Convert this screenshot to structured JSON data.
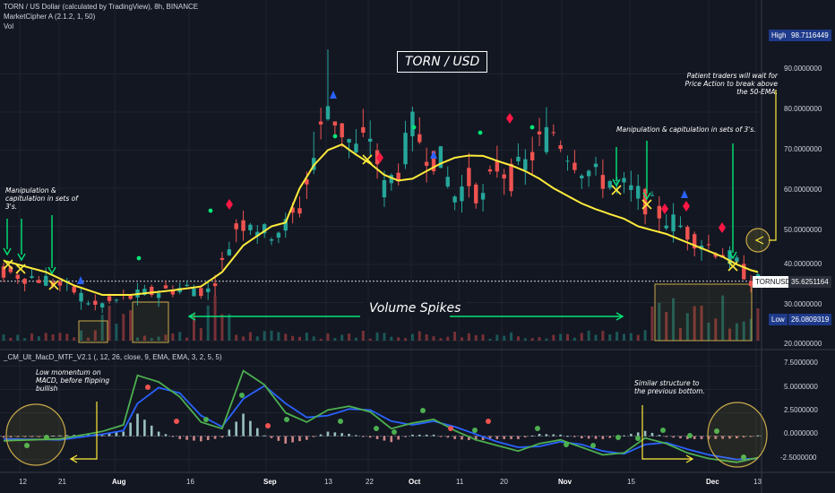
{
  "header": {
    "line1": "TORN / US Dollar (calculated by TradingView), 8h, BINANCE",
    "line2": "MarketCipher A (2.1.2, 1, 50)",
    "line3": "Vol",
    "macd_legend": "_CM_Ult_MacD_MTF_V2.1 (, 12, 26, close, 9, EMA, EMA, 3, 2, 5, 5)"
  },
  "price_axis": {
    "ticks": [
      "90.0000000",
      "80.0000000",
      "70.0000000",
      "60.0000000",
      "50.0000000",
      "40.0000000",
      "30.0000000",
      "20.0000000"
    ],
    "high_label": "High",
    "high_value": "98.7116449",
    "symbol_label": "TORNUSD",
    "last_value": "35.6251164",
    "low_label": "Low",
    "low_value": "26.0809319"
  },
  "macd_axis": {
    "ticks": [
      "7.5000000",
      "5.0000000",
      "2.5000000",
      "0.0000000",
      "-2.5000000"
    ]
  },
  "time_axis": {
    "ticks": [
      "12",
      "21",
      "Aug",
      "16",
      "Sep",
      "13",
      "22",
      "Oct",
      "11",
      "20",
      "Nov",
      "15",
      "Dec",
      "13"
    ]
  },
  "annotations": {
    "title": "TORN / USD",
    "volume_spikes": "Volume Spikes",
    "manip_left": "Manipulation & capitulation in sets of 3's.",
    "manip_right": "Manipulation & capitulation in sets of 3's.",
    "patient": "Patient traders will wait for Price Action to break above the 50-EMA.",
    "low_momentum": "Low momentum on MACD, before flipping bullish",
    "similar": "Similar structure to the previous bottom."
  },
  "colors": {
    "background": "#131722",
    "up": "#26a69a",
    "down": "#ef5350",
    "ema": "#ffeb3b",
    "macd": "#4caf50",
    "signal": "#2962ff",
    "annotation_green": "#00e676",
    "annotation_yellow": "#ffeb3b",
    "blue_marker": "#2962ff",
    "red_marker": "#ff1744"
  },
  "chart_data": {
    "type": "candlestick",
    "price_range": [
      20,
      100
    ],
    "macd_range": [
      -3.5,
      8.5
    ],
    "x_ticks": [
      "12",
      "21",
      "Aug",
      "16",
      "Sep",
      "13",
      "22",
      "Oct",
      "11",
      "20",
      "Nov",
      "15",
      "Dec",
      "13"
    ],
    "price_path": [
      [
        0,
        38
      ],
      [
        6,
        36
      ],
      [
        10,
        33
      ],
      [
        13,
        29
      ],
      [
        17,
        31
      ],
      [
        22,
        33
      ],
      [
        26,
        34
      ],
      [
        29,
        33
      ],
      [
        31,
        40
      ],
      [
        33,
        50
      ],
      [
        35,
        52
      ],
      [
        37,
        48
      ],
      [
        40,
        50
      ],
      [
        42,
        55
      ],
      [
        44,
        68
      ],
      [
        46,
        82
      ],
      [
        48,
        75
      ],
      [
        50,
        70
      ],
      [
        52,
        74
      ],
      [
        54,
        60
      ],
      [
        56,
        65
      ],
      [
        58,
        76
      ],
      [
        60,
        70
      ],
      [
        62,
        67
      ],
      [
        64,
        58
      ],
      [
        66,
        62
      ],
      [
        68,
        57
      ],
      [
        70,
        66
      ],
      [
        72,
        63
      ],
      [
        74,
        66
      ],
      [
        76,
        72
      ],
      [
        78,
        75
      ],
      [
        80,
        70
      ],
      [
        82,
        66
      ],
      [
        84,
        63
      ],
      [
        86,
        62
      ],
      [
        88,
        60
      ],
      [
        90,
        58
      ],
      [
        92,
        55
      ],
      [
        94,
        52
      ],
      [
        96,
        50
      ],
      [
        98,
        47
      ],
      [
        100,
        45
      ],
      [
        102,
        43
      ],
      [
        104,
        40
      ],
      [
        106,
        36
      ],
      [
        107,
        35.6
      ]
    ],
    "ema_path": [
      [
        0,
        41
      ],
      [
        6,
        38
      ],
      [
        10,
        34.5
      ],
      [
        14,
        32
      ],
      [
        18,
        32
      ],
      [
        24,
        33.2
      ],
      [
        28,
        34.2
      ],
      [
        31,
        38
      ],
      [
        34,
        45
      ],
      [
        38,
        50
      ],
      [
        40,
        51
      ],
      [
        42,
        60
      ],
      [
        44,
        66
      ],
      [
        46,
        70
      ],
      [
        48,
        71.5
      ],
      [
        50,
        68.8
      ],
      [
        52,
        66.5
      ],
      [
        54,
        63.5
      ],
      [
        56,
        62
      ],
      [
        58,
        62.5
      ],
      [
        60,
        64.5
      ],
      [
        62,
        66.5
      ],
      [
        64,
        68
      ],
      [
        66,
        68.6
      ],
      [
        68,
        68.5
      ],
      [
        70,
        67.2
      ],
      [
        72,
        66
      ],
      [
        74,
        64.5
      ],
      [
        76,
        62.5
      ],
      [
        78,
        60
      ],
      [
        80,
        58
      ],
      [
        82,
        56
      ],
      [
        84,
        54.5
      ],
      [
        86,
        53.2
      ],
      [
        88,
        52
      ],
      [
        90,
        50
      ],
      [
        92,
        49
      ],
      [
        94,
        48
      ],
      [
        96,
        46.5
      ],
      [
        98,
        45
      ],
      [
        100,
        43.5
      ],
      [
        102,
        42
      ],
      [
        104,
        40
      ],
      [
        106,
        38.5
      ],
      [
        107,
        38
      ]
    ],
    "macd_path": [
      [
        0,
        -0.5
      ],
      [
        8,
        -0.3
      ],
      [
        14,
        0.5
      ],
      [
        17,
        1.2
      ],
      [
        19,
        6.5
      ],
      [
        22,
        5.8
      ],
      [
        25,
        4.2
      ],
      [
        28,
        1.5
      ],
      [
        31,
        0.8
      ],
      [
        34,
        7.0
      ],
      [
        37,
        5.5
      ],
      [
        40,
        2.5
      ],
      [
        43,
        1.5
      ],
      [
        46,
        2.8
      ],
      [
        49,
        3.2
      ],
      [
        52,
        2.6
      ],
      [
        55,
        0.8
      ],
      [
        58,
        1.4
      ],
      [
        61,
        1.8
      ],
      [
        64,
        0.6
      ],
      [
        67,
        -0.4
      ],
      [
        70,
        -1.0
      ],
      [
        73,
        -1.6
      ],
      [
        76,
        -0.8
      ],
      [
        79,
        -0.4
      ],
      [
        82,
        -1.2
      ],
      [
        85,
        -2.0
      ],
      [
        88,
        -1.8
      ],
      [
        91,
        -0.2
      ],
      [
        94,
        -0.8
      ],
      [
        97,
        -1.8
      ],
      [
        100,
        -2.4
      ],
      [
        104,
        -2.8
      ],
      [
        107,
        -2.3
      ]
    ],
    "signal_path": [
      [
        0,
        -0.3
      ],
      [
        8,
        -0.4
      ],
      [
        14,
        0.2
      ],
      [
        17,
        0.6
      ],
      [
        19,
        3.5
      ],
      [
        22,
        5.2
      ],
      [
        25,
        4.6
      ],
      [
        28,
        2.2
      ],
      [
        31,
        1.0
      ],
      [
        34,
        4.0
      ],
      [
        37,
        5.4
      ],
      [
        40,
        3.5
      ],
      [
        43,
        2.0
      ],
      [
        46,
        2.2
      ],
      [
        49,
        2.9
      ],
      [
        52,
        2.8
      ],
      [
        55,
        1.6
      ],
      [
        58,
        1.2
      ],
      [
        61,
        1.6
      ],
      [
        64,
        1.0
      ],
      [
        67,
        0.2
      ],
      [
        70,
        -0.6
      ],
      [
        73,
        -1.2
      ],
      [
        76,
        -1.1
      ],
      [
        79,
        -0.6
      ],
      [
        82,
        -0.9
      ],
      [
        85,
        -1.6
      ],
      [
        88,
        -1.9
      ],
      [
        91,
        -0.9
      ],
      [
        94,
        -0.7
      ],
      [
        97,
        -1.4
      ],
      [
        100,
        -2.0
      ],
      [
        104,
        -2.5
      ],
      [
        107,
        -2.4
      ]
    ],
    "volume_spikes_zones": [
      "mid-July",
      "early August",
      "late November to December"
    ]
  }
}
